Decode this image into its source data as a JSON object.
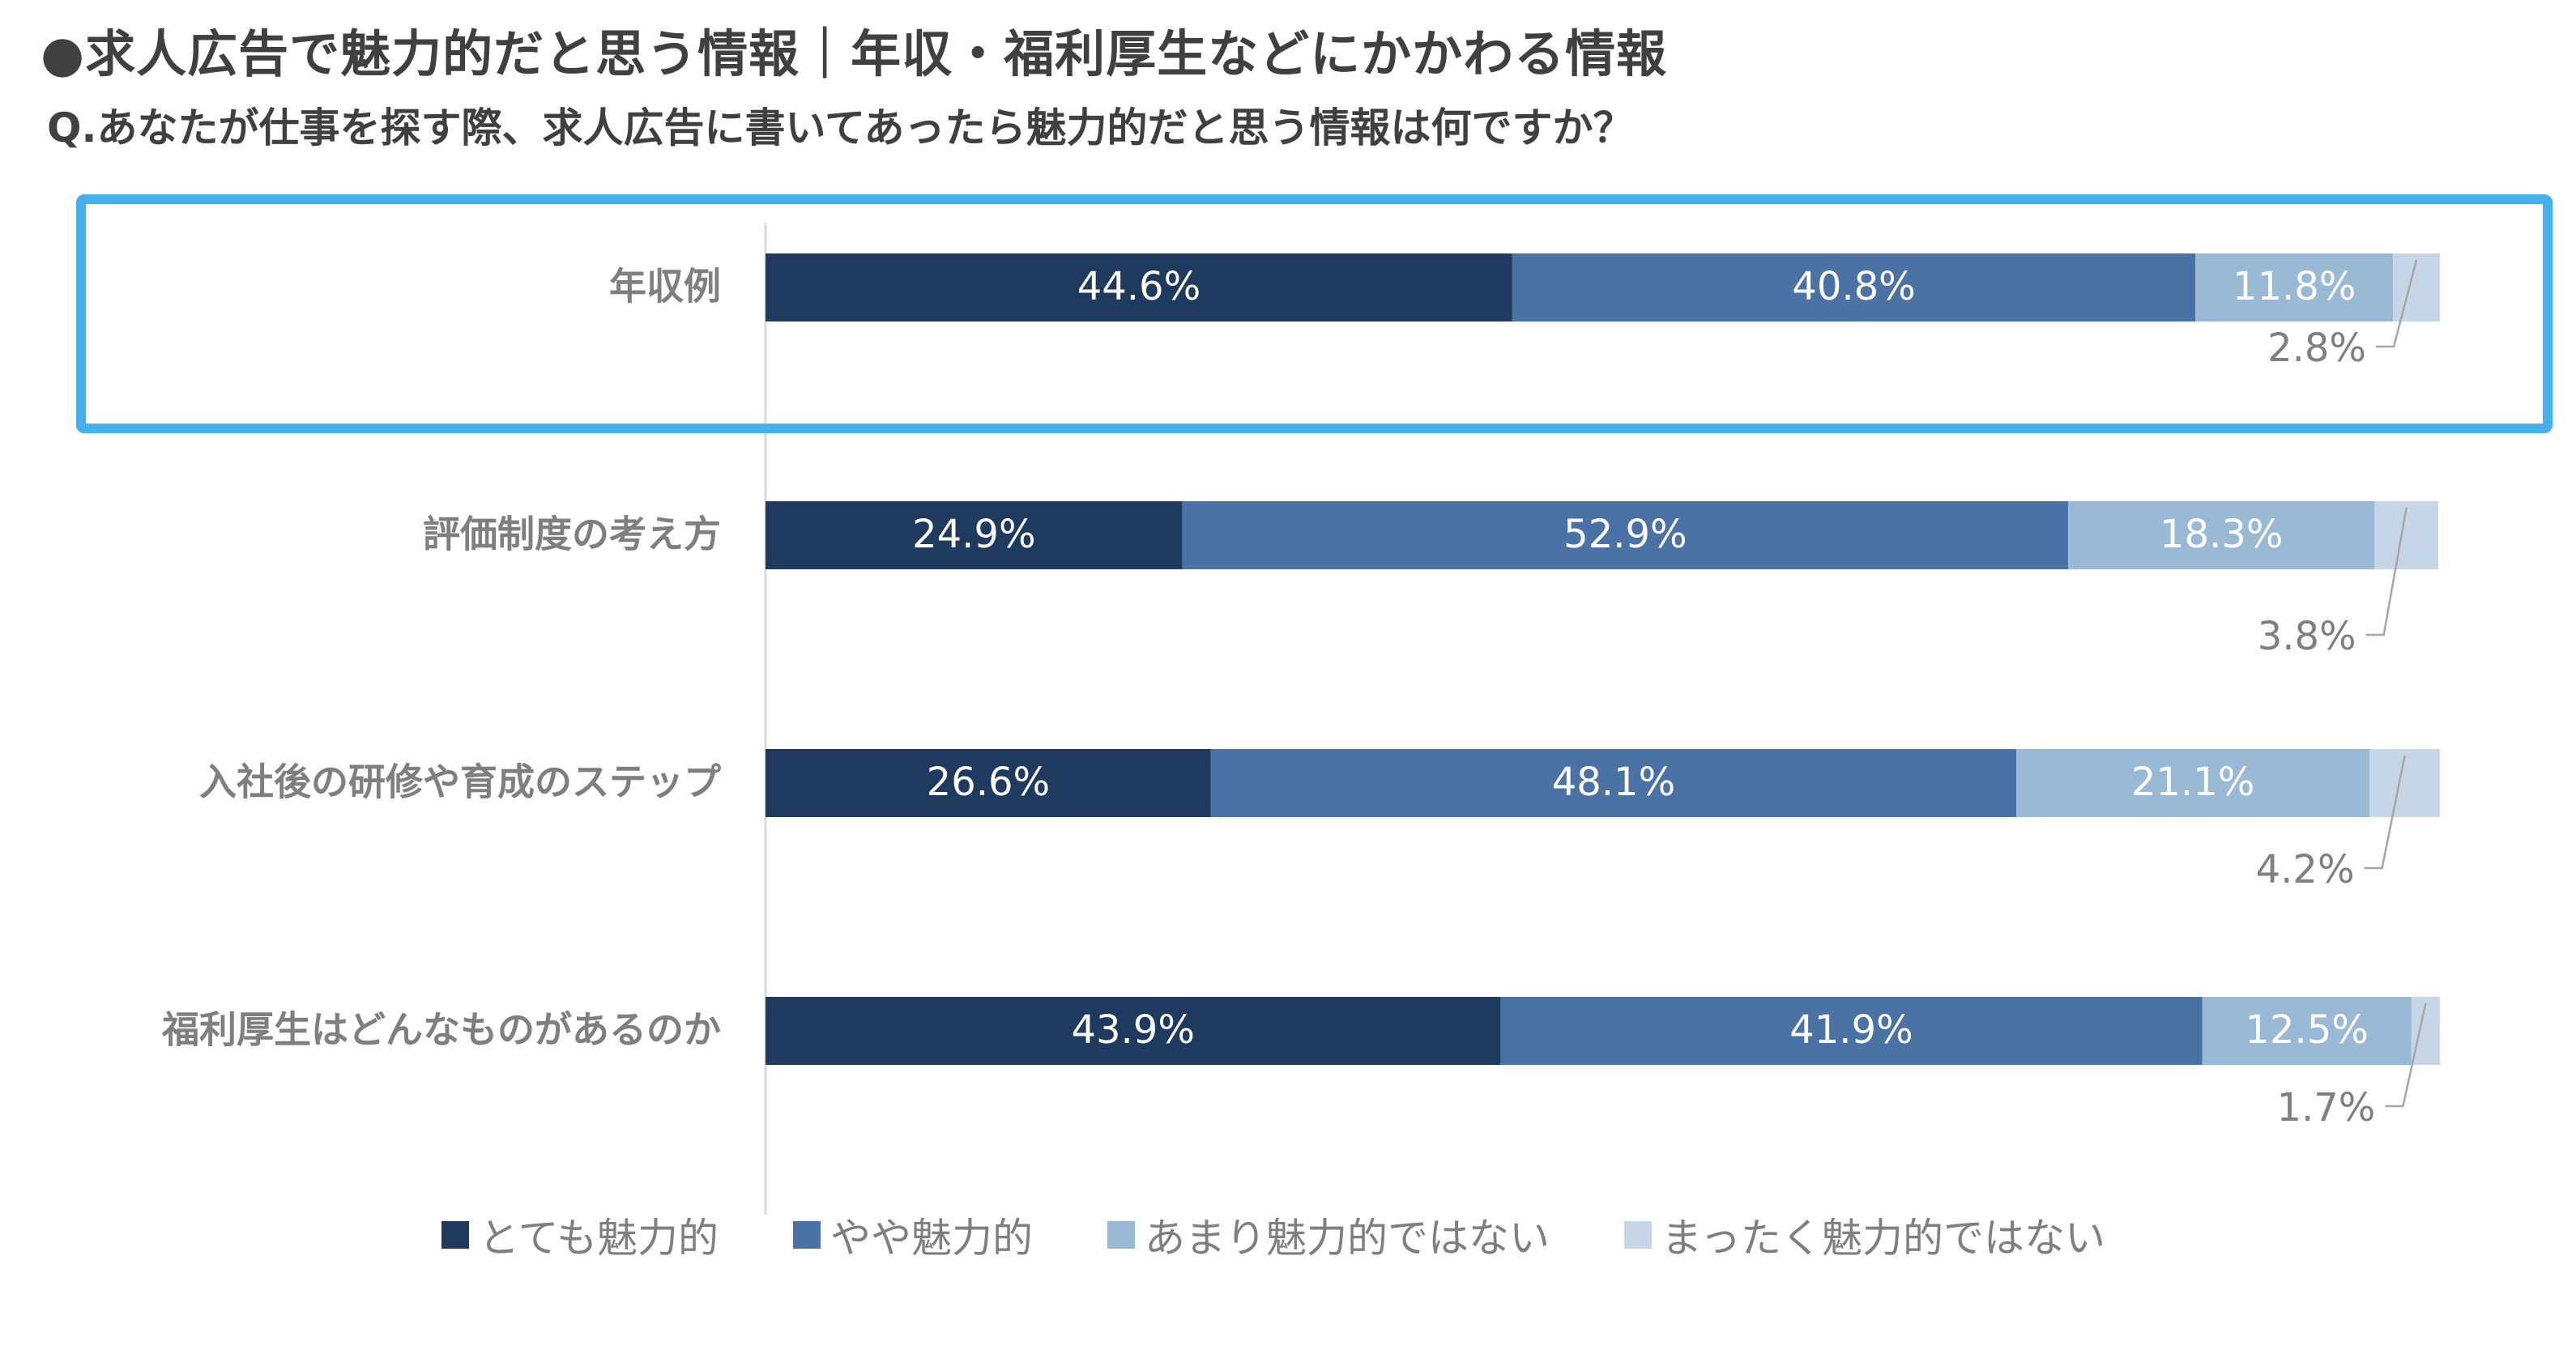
{
  "header": {
    "title": "●求人広告で魅力的だと思う情報｜年収・福利厚生などにかかわる情報",
    "subtitle": "Q.あなたが仕事を探す際、求人広告に書いてあったら魅力的だと思う情報は何ですか？"
  },
  "chart_data": {
    "type": "bar",
    "orientation": "horizontal",
    "stacked": true,
    "normalized": true,
    "categories": [
      "年収例",
      "評価制度の考え方",
      "入社後の研修や育成のステップ",
      "福利厚生はどんなものがあるのか"
    ],
    "series": [
      {
        "name": "とても魅力的",
        "color": "#1f3a5f",
        "label_color": "#ffffff",
        "values": [
          44.6,
          24.9,
          26.6,
          43.9
        ]
      },
      {
        "name": "やや魅力的",
        "color": "#4a72a4",
        "label_color": "#ffffff",
        "values": [
          40.8,
          52.9,
          48.1,
          41.9
        ]
      },
      {
        "name": "あまり魅力的ではない",
        "color": "#9ab9d4",
        "label_color": "#ffffff",
        "values": [
          11.8,
          18.3,
          21.1,
          12.5
        ]
      },
      {
        "name": "まったく魅力的ではない",
        "color": "#c7d6e6",
        "label_color": "#7f7f7f",
        "values": [
          2.8,
          3.8,
          4.2,
          1.7
        ]
      }
    ],
    "labels": [
      [
        "44.6%",
        "40.8%",
        "11.8%",
        "2.8%"
      ],
      [
        "24.9%",
        "52.9%",
        "18.3%",
        "3.8%"
      ],
      [
        "26.6%",
        "48.1%",
        "21.1%",
        "4.2%"
      ],
      [
        "43.9%",
        "41.9%",
        "12.5%",
        "1.7%"
      ]
    ],
    "xlim": [
      0,
      100
    ],
    "legend_position": "bottom",
    "highlighted_category": "年収例",
    "highlight_color": "#45b0ee"
  }
}
